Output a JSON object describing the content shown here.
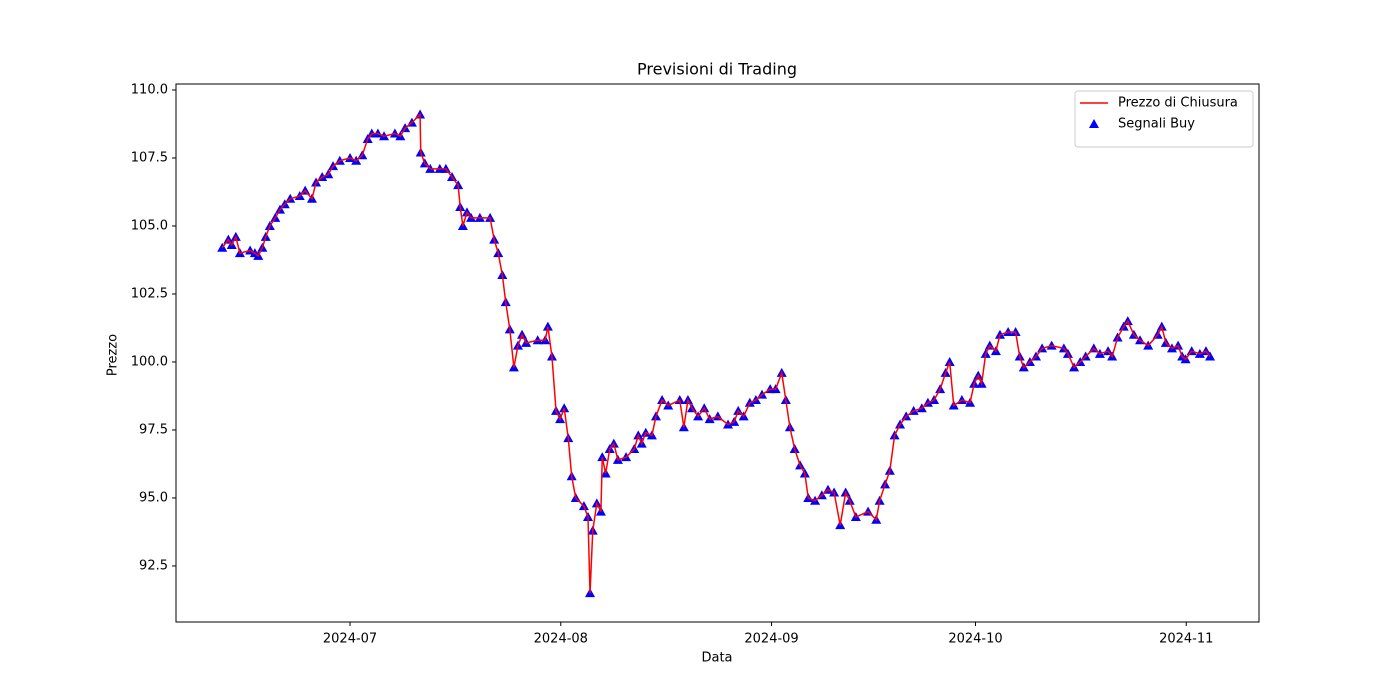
{
  "chart_data": {
    "type": "line",
    "title": "Previsioni di Trading",
    "xlabel": "Data",
    "ylabel": "Prezzo",
    "x": [
      19886.2,
      19887.1,
      19887.6,
      19888.2,
      19888.8,
      19890.3,
      19891.0,
      19891.5,
      19892.1,
      19892.6,
      19893.2,
      19894.0,
      19894.7,
      19895.4,
      19896.2,
      19897.6,
      19898.4,
      19899.4,
      19900.0,
      19900.9,
      19901.8,
      19902.5,
      19903.5,
      19905.0,
      19905.9,
      19906.8,
      19907.6,
      19908.2,
      19909.1,
      19910.0,
      19911.6,
      19912.4,
      19913.1,
      19914.1,
      19915.3,
      19915.4,
      19916.0,
      19916.8,
      19918.2,
      19919.1,
      19920.0,
      19920.9,
      19921.2,
      19921.6,
      19922.2,
      19922.8,
      19924.1,
      19925.6,
      19926.2,
      19926.8,
      19927.4,
      19927.9,
      19928.5,
      19929.1,
      19929.7,
      19930.3,
      19930.9,
      19932.6,
      19933.7,
      19934.1,
      19934.7,
      19935.3,
      19935.9,
      19936.5,
      19937.1,
      19937.6,
      19938.2,
      19939.4,
      19940.0,
      19940.3,
      19940.7,
      19941.3,
      19941.9,
      19942.1,
      19942.6,
      19943.2,
      19943.8,
      19944.4,
      19945.6,
      19946.8,
      19947.4,
      19947.9,
      19948.5,
      19949.4,
      19950.0,
      19950.9,
      19951.8,
      19953.5,
      19954.1,
      19954.7,
      19955.3,
      19956.2,
      19957.1,
      19957.9,
      19959.1,
      19960.6,
      19961.5,
      19962.1,
      19962.9,
      19963.8,
      19964.7,
      19965.6,
      19966.8,
      19967.6,
      19968.5,
      19969.1,
      19969.7,
      19970.4,
      19971.2,
      19971.9,
      19972.4,
      19973.4,
      19974.4,
      19975.3,
      19976.2,
      19977.1,
      19977.9,
      19978.5,
      19979.4,
      19981.2,
      19982.4,
      19982.9,
      19983.7,
      19984.4,
      19985.1,
      19985.9,
      19986.8,
      19987.9,
      19989.1,
      19990.0,
      19990.9,
      19991.8,
      19992.6,
      19993.2,
      19993.8,
      19995.0,
      19996.2,
      19996.8,
      19997.4,
      19997.9,
      19998.5,
      19999.1,
      20000.0,
      20000.6,
      20001.8,
      20002.9,
      20003.5,
      20004.1,
      20005.0,
      20005.9,
      20006.8,
      20008.2,
      20010.0,
      20010.6,
      20011.5,
      20012.4,
      20013.2,
      20014.4,
      20015.3,
      20016.5,
      20017.1,
      20017.9,
      20018.8,
      20019.4,
      20020.3,
      20021.2,
      20022.4,
      20023.8,
      20024.4,
      20025.0,
      20025.9,
      20026.8,
      20027.4,
      20027.9,
      20028.8,
      20030.0,
      20030.9,
      20031.5
    ],
    "series": [
      {
        "name": "Prezzo di Chiusura",
        "type": "line",
        "color": "#ff0000",
        "values": [
          104.2,
          104.5,
          104.3,
          104.6,
          104.0,
          104.1,
          104.0,
          103.9,
          104.2,
          104.6,
          105.0,
          105.3,
          105.6,
          105.8,
          106.0,
          106.1,
          106.3,
          106.0,
          106.6,
          106.8,
          106.9,
          107.2,
          107.4,
          107.5,
          107.4,
          107.6,
          108.2,
          108.4,
          108.4,
          108.3,
          108.4,
          108.3,
          108.6,
          108.8,
          109.1,
          107.7,
          107.3,
          107.1,
          107.1,
          107.1,
          106.8,
          106.5,
          105.7,
          105.0,
          105.5,
          105.3,
          105.3,
          105.3,
          104.5,
          104.0,
          103.2,
          102.2,
          101.2,
          99.8,
          100.6,
          101.0,
          100.7,
          100.8,
          100.8,
          101.3,
          100.2,
          98.2,
          97.9,
          98.3,
          97.2,
          95.8,
          95.0,
          94.7,
          94.3,
          91.5,
          93.8,
          94.8,
          94.5,
          96.5,
          95.9,
          96.8,
          97.0,
          96.4,
          96.5,
          96.8,
          97.3,
          97.0,
          97.4,
          97.3,
          98.0,
          98.6,
          98.4,
          98.6,
          97.6,
          98.6,
          98.3,
          98.0,
          98.3,
          97.9,
          98.0,
          97.7,
          97.8,
          98.2,
          98.0,
          98.5,
          98.6,
          98.8,
          99.0,
          99.0,
          99.6,
          98.6,
          97.6,
          96.8,
          96.2,
          95.9,
          95.0,
          94.9,
          95.1,
          95.3,
          95.2,
          94.0,
          95.2,
          94.9,
          94.3,
          94.5,
          94.2,
          94.9,
          95.5,
          96.0,
          97.3,
          97.7,
          98.0,
          98.2,
          98.3,
          98.5,
          98.6,
          99.0,
          99.6,
          100.0,
          98.4,
          98.6,
          98.5,
          99.2,
          99.5,
          99.2,
          100.3,
          100.6,
          100.4,
          101.0,
          101.1,
          101.1,
          100.2,
          99.8,
          100.0,
          100.2,
          100.5,
          100.6,
          100.5,
          100.3,
          99.8,
          100.0,
          100.2,
          100.5,
          100.3,
          100.4,
          100.2,
          100.9,
          101.3,
          101.5,
          101.0,
          100.8,
          100.6,
          101.0,
          101.3,
          100.7,
          100.5,
          100.6,
          100.2,
          100.1,
          100.4,
          100.3,
          100.4,
          100.2
        ]
      },
      {
        "name": "Segnali Buy",
        "type": "scatter",
        "color": "#0000ff",
        "values": [
          104.2,
          104.5,
          104.3,
          104.6,
          104.0,
          104.1,
          104.0,
          103.9,
          104.2,
          104.6,
          105.0,
          105.3,
          105.6,
          105.8,
          106.0,
          106.1,
          106.3,
          106.0,
          106.6,
          106.8,
          106.9,
          107.2,
          107.4,
          107.5,
          107.4,
          107.6,
          108.2,
          108.4,
          108.4,
          108.3,
          108.4,
          108.3,
          108.6,
          108.8,
          109.1,
          107.7,
          107.3,
          107.1,
          107.1,
          107.1,
          106.8,
          106.5,
          105.7,
          105.0,
          105.5,
          105.3,
          105.3,
          105.3,
          104.5,
          104.0,
          103.2,
          102.2,
          101.2,
          99.8,
          100.6,
          101.0,
          100.7,
          100.8,
          100.8,
          101.3,
          100.2,
          98.2,
          97.9,
          98.3,
          97.2,
          95.8,
          95.0,
          94.7,
          94.3,
          91.5,
          93.8,
          94.8,
          94.5,
          96.5,
          95.9,
          96.8,
          97.0,
          96.4,
          96.5,
          96.8,
          97.3,
          97.0,
          97.4,
          97.3,
          98.0,
          98.6,
          98.4,
          98.6,
          97.6,
          98.6,
          98.3,
          98.0,
          98.3,
          97.9,
          98.0,
          97.7,
          97.8,
          98.2,
          98.0,
          98.5,
          98.6,
          98.8,
          99.0,
          99.0,
          99.6,
          98.6,
          97.6,
          96.8,
          96.2,
          95.9,
          95.0,
          94.9,
          95.1,
          95.3,
          95.2,
          94.0,
          95.2,
          94.9,
          94.3,
          94.5,
          94.2,
          94.9,
          95.5,
          96.0,
          97.3,
          97.7,
          98.0,
          98.2,
          98.3,
          98.5,
          98.6,
          99.0,
          99.6,
          100.0,
          98.4,
          98.6,
          98.5,
          99.2,
          99.5,
          99.2,
          100.3,
          100.6,
          100.4,
          101.0,
          101.1,
          101.1,
          100.2,
          99.8,
          100.0,
          100.2,
          100.5,
          100.6,
          100.5,
          100.3,
          99.8,
          100.0,
          100.2,
          100.5,
          100.3,
          100.4,
          100.2,
          100.9,
          101.3,
          101.5,
          101.0,
          100.8,
          100.6,
          101.0,
          101.3,
          100.7,
          100.5,
          100.6,
          100.2,
          100.1,
          100.4,
          100.3,
          100.4,
          100.2
        ]
      }
    ],
    "xlim": [
      19879.4,
      20038.7
    ],
    "xticks": [
      {
        "value": 19905,
        "label": "2024-07"
      },
      {
        "value": 19936,
        "label": "2024-08"
      },
      {
        "value": 19967,
        "label": "2024-09"
      },
      {
        "value": 19997,
        "label": "2024-10"
      },
      {
        "value": 20028,
        "label": "2024-11"
      }
    ],
    "ylim": [
      90.44,
      110.22
    ],
    "yticks": [
      92.5,
      {
        "value": 95,
        "label": "95.0"
      },
      97.5,
      {
        "value": 100,
        "label": "100.0"
      },
      102.5,
      {
        "value": 105,
        "label": "105.0"
      },
      107.5,
      {
        "value": 110,
        "label": "110.0"
      }
    ],
    "grid": false,
    "legend": "upper right"
  }
}
